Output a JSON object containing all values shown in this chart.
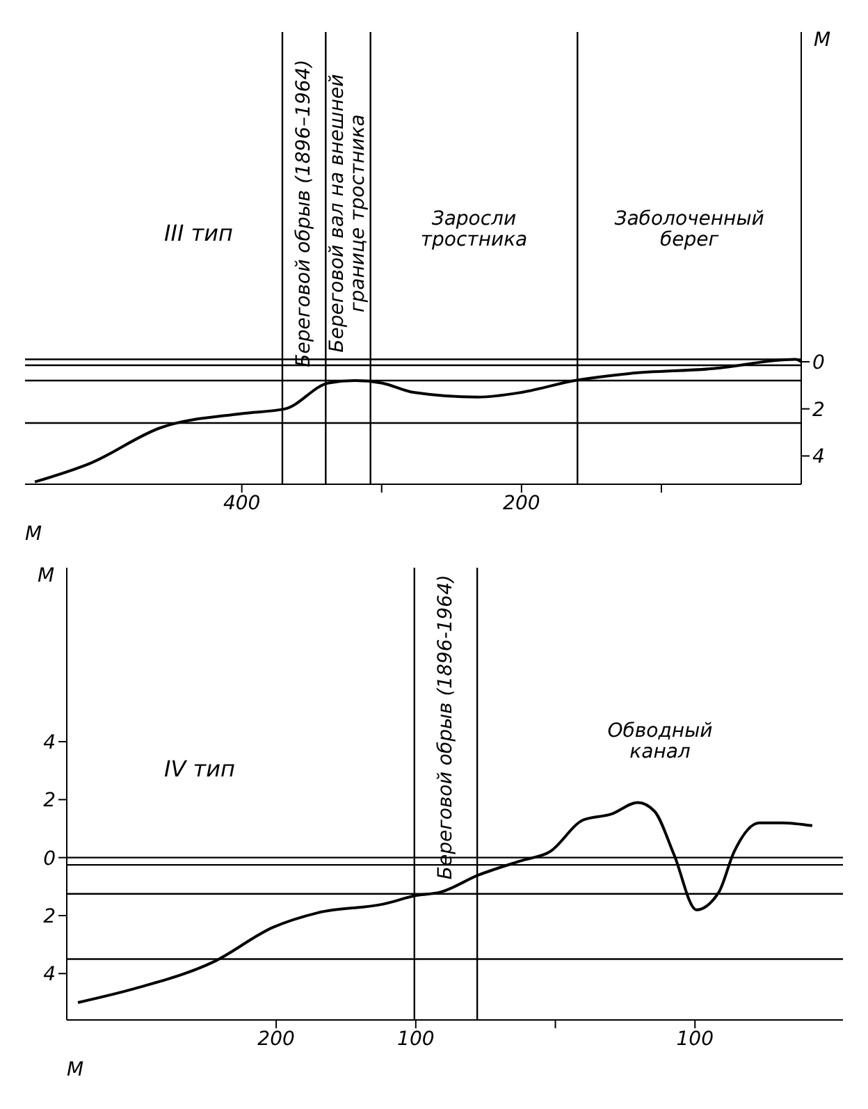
{
  "chart_data": [
    {
      "type": "line",
      "title": "III тип",
      "xlabel": "М",
      "ylabel": "М",
      "marker": "none",
      "x": [
        548,
        508,
        458,
        400,
        369,
        338,
        319,
        300,
        277,
        231,
        200,
        162,
        123,
        65,
        4,
        0
      ],
      "series": [
        {
          "color": "#000000",
          "values": [
            5.1,
            4.3,
            2.8,
            2.2,
            2.0,
            0.9,
            0.8,
            0.9,
            1.3,
            1.5,
            1.3,
            0.8,
            0.5,
            0.3,
            -0.1,
            0
          ]
        }
      ],
      "xlim": [
        555,
        0
      ],
      "xticks": [
        400,
        {
          "value": 300,
          "label": null
        },
        200,
        {
          "value": 100,
          "label": null
        }
      ],
      "ylim": [
        5.2,
        -14
      ],
      "yticks": [
        0,
        2,
        4
      ],
      "ref_lines": [
        {
          "axis": "x",
          "value": 371
        },
        {
          "axis": "x",
          "value": 340
        },
        {
          "axis": "x",
          "value": 308
        },
        {
          "axis": "x",
          "value": 160
        },
        {
          "axis": "y",
          "value": -0.1
        },
        {
          "axis": "y",
          "value": 0.15
        },
        {
          "axis": "y",
          "value": 0.8
        },
        {
          "axis": "y",
          "value": 2.6
        }
      ],
      "annotations": [
        "Береговой обрыв (1896–1964)",
        "Береговой вал на внешней\nгранице тростника",
        "Заросли\nтростника",
        "Заболоченный\nберег"
      ]
    },
    {
      "type": "line",
      "title": "IV тип",
      "xlabel": "М",
      "ylabel": "М",
      "marker": "none",
      "x": [
        -342,
        -300,
        -245,
        -202,
        -170,
        -123,
        -99,
        -83,
        -55,
        -24,
        -4,
        20,
        40,
        59,
        71,
        85,
        101,
        117,
        128,
        146,
        162,
        184
      ],
      "series": [
        {
          "color": "#000000",
          "values": [
            5.0,
            4.5,
            3.6,
            2.4,
            1.9,
            1.6,
            1.3,
            1.2,
            0.6,
            0.1,
            -0.2,
            -1.3,
            -1.5,
            -1.9,
            -1.6,
            -0.1,
            1.8,
            1.2,
            -0.2,
            -1.2,
            -1.2,
            -1.1
          ]
        }
      ],
      "xlim": [
        -350,
        206
      ],
      "xticks": [
        {
          "value": -200,
          "label": "200"
        },
        {
          "value": -100,
          "label": "100"
        },
        {
          "value": 0,
          "label": null
        },
        100
      ],
      "ylim": [
        5.6,
        -10
      ],
      "yticks": [
        {
          "value": -4,
          "label": "4"
        },
        {
          "value": -2,
          "label": "2"
        },
        0,
        2,
        4
      ],
      "ref_lines": [
        {
          "axis": "x",
          "value": -101
        },
        {
          "axis": "x",
          "value": -56
        },
        {
          "axis": "y",
          "value": 0
        },
        {
          "axis": "y",
          "value": 0.25
        },
        {
          "axis": "y",
          "value": 1.25
        },
        {
          "axis": "y",
          "value": 3.5
        }
      ],
      "annotations": [
        "Береговой обрыв (1896-1964)",
        "Обводный\nканал"
      ]
    }
  ]
}
